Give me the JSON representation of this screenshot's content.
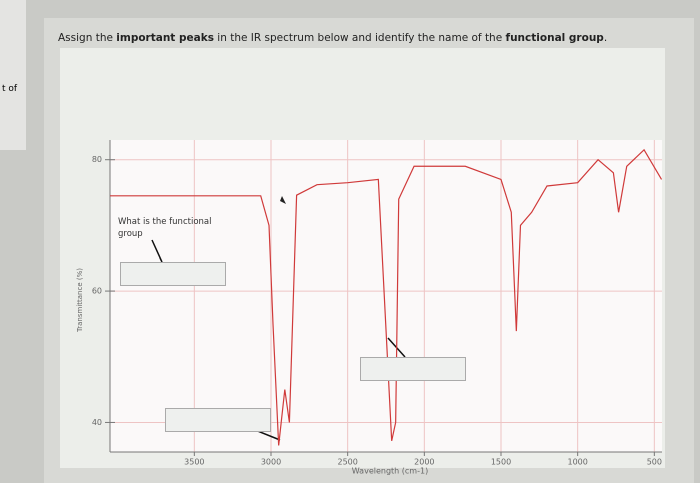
{
  "side_label": "t of",
  "instruction": [
    "Assign the ",
    "important peaks",
    " in the IR spectrum below and identify the name of the ",
    "functional group",
    "."
  ],
  "prompt": "What is the functional group",
  "chart_data": {
    "type": "line",
    "xlabel": "Wavelength (cm-1)",
    "ylabel": "Transmittance (%)",
    "xlim": [
      4050,
      450
    ],
    "ylim": [
      35.5,
      83
    ],
    "xticks": [
      3500,
      3000,
      2500,
      2000,
      1500,
      1000,
      500
    ],
    "yticks": [
      40,
      60,
      80
    ],
    "grid": true,
    "series": [
      {
        "color": "#d03a3a",
        "x": [
          4050,
          3067,
          3013,
          2987,
          2950,
          2910,
          2880,
          2833,
          2700,
          2500,
          2300,
          2213,
          2187,
          2167,
          2067,
          1733,
          1500,
          1433,
          1400,
          1373,
          1300,
          1200,
          1000,
          867,
          767,
          733,
          680,
          567,
          453
        ],
        "values": [
          74.5,
          74.5,
          70,
          55,
          36.5,
          45,
          40,
          74.6,
          76.2,
          76.5,
          77,
          37.2,
          40,
          74,
          79,
          79,
          77,
          72,
          53.9,
          70,
          72,
          76,
          76.5,
          80,
          78,
          72,
          79,
          81.5,
          77
        ]
      }
    ]
  }
}
